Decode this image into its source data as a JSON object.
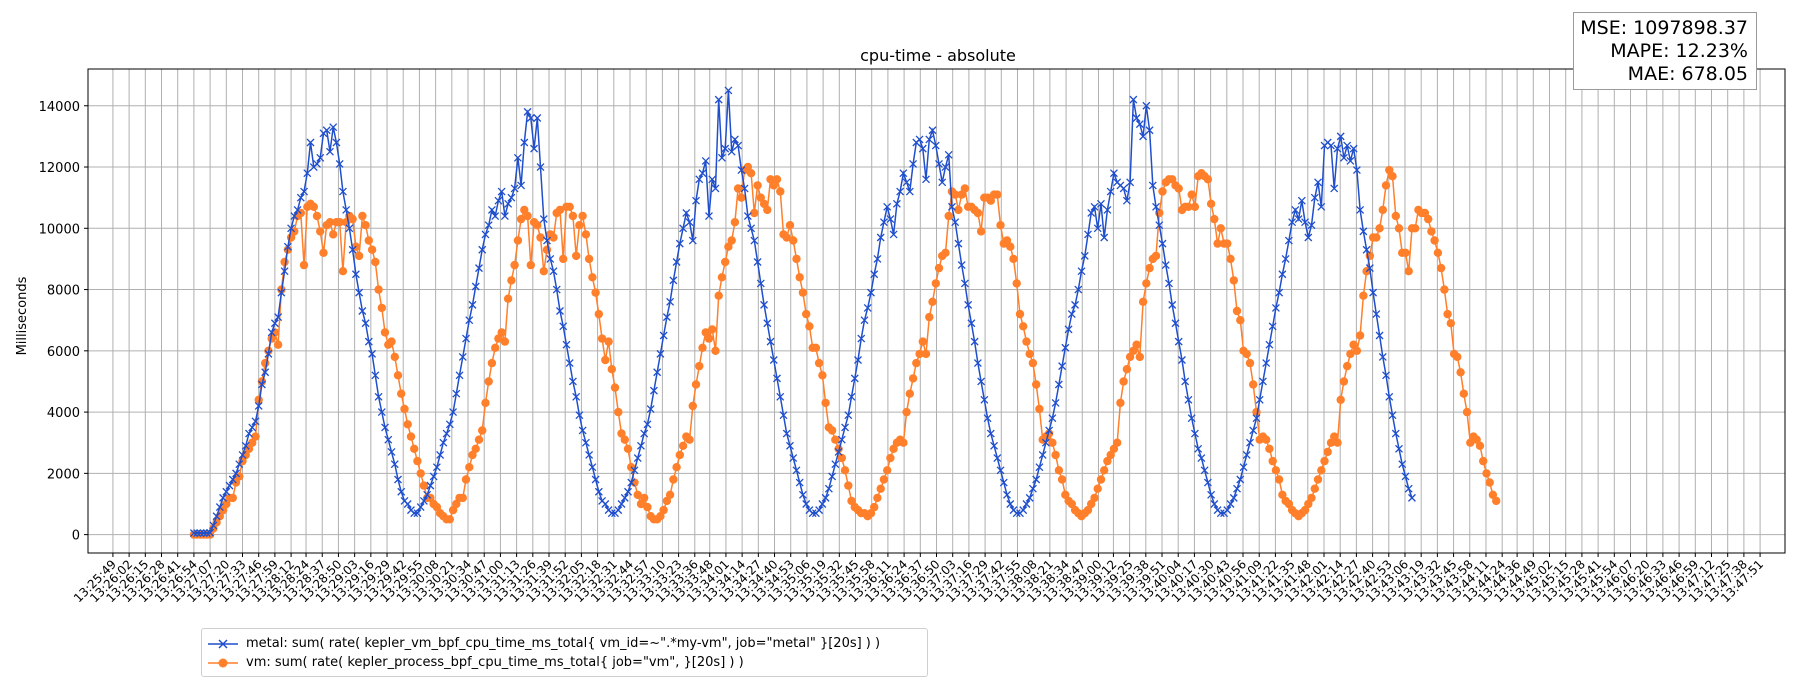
{
  "chart_data": {
    "type": "line",
    "title": "cpu-time - absolute",
    "xlabel": "",
    "ylabel": "Milliseconds",
    "ylim": [
      -600,
      15200
    ],
    "yticks": [
      0,
      2000,
      4000,
      6000,
      8000,
      10000,
      12000,
      14000
    ],
    "grid": true,
    "legend_position": "bottom-left, below plot",
    "x_tick_labels": [
      "13:25:49",
      "13:26:02",
      "13:26:15",
      "13:26:28",
      "13:26:41",
      "13:26:54",
      "13:27:07",
      "13:27:20",
      "13:27:33",
      "13:27:46",
      "13:27:59",
      "13:28:12",
      "13:28:24",
      "13:28:37",
      "13:28:50",
      "13:29:03",
      "13:29:16",
      "13:29:29",
      "13:29:42",
      "13:29:55",
      "13:30:08",
      "13:30:21",
      "13:30:34",
      "13:30:47",
      "13:31:00",
      "13:31:13",
      "13:31:26",
      "13:31:39",
      "13:31:52",
      "13:32:05",
      "13:32:18",
      "13:32:31",
      "13:32:44",
      "13:32:57",
      "13:33:10",
      "13:33:23",
      "13:33:36",
      "13:33:48",
      "13:34:01",
      "13:34:14",
      "13:34:27",
      "13:34:40",
      "13:34:53",
      "13:35:06",
      "13:35:19",
      "13:35:32",
      "13:35:45",
      "13:35:58",
      "13:36:11",
      "13:36:24",
      "13:36:37",
      "13:36:50",
      "13:37:03",
      "13:37:16",
      "13:37:29",
      "13:37:42",
      "13:37:55",
      "13:38:08",
      "13:38:21",
      "13:38:34",
      "13:38:47",
      "13:39:00",
      "13:39:12",
      "13:39:25",
      "13:39:38",
      "13:39:51",
      "13:40:04",
      "13:40:17",
      "13:40:30",
      "13:40:43",
      "13:40:56",
      "13:41:09",
      "13:41:22",
      "13:41:35",
      "13:41:48",
      "13:42:01",
      "13:42:14",
      "13:42:27",
      "13:42:40",
      "13:42:53",
      "13:43:06",
      "13:43:19",
      "13:43:32",
      "13:43:45",
      "13:43:58",
      "13:44:11",
      "13:44:24",
      "13:44:36",
      "13:44:49",
      "13:45:02",
      "13:45:15",
      "13:45:28",
      "13:45:41",
      "13:45:54",
      "13:46:07",
      "13:46:20",
      "13:46:33",
      "13:46:46",
      "13:46:59",
      "13:47:12",
      "13:47:25",
      "13:47:38",
      "13:47:51"
    ],
    "x_start": "13:26:54",
    "x_step_seconds": 2.6,
    "series": [
      {
        "name": "metal: sum( rate( kepler_vm_bpf_cpu_time_ms_total{ vm_id=~\".*my-vm\", job=\"metal\" }[20s] ) )",
        "color": "#1f4fcc",
        "marker": "x",
        "values": [
          50,
          50,
          50,
          50,
          50,
          60,
          300,
          600,
          900,
          1200,
          1400,
          1600,
          1800,
          2000,
          2300,
          2600,
          2900,
          3300,
          3500,
          3700,
          4200,
          4900,
          5300,
          5900,
          6600,
          6900,
          7100,
          7900,
          8600,
          9400,
          10000,
          10400,
          10600,
          11000,
          11200,
          11800,
          12800,
          12000,
          12100,
          12300,
          13100,
          13200,
          12500,
          13300,
          12800,
          12100,
          11200,
          10600,
          10000,
          9300,
          8500,
          7900,
          7300,
          6900,
          6300,
          5900,
          5200,
          4500,
          4000,
          3500,
          3100,
          2700,
          2300,
          1800,
          1400,
          1100,
          1000,
          800,
          700,
          700,
          900,
          1100,
          1300,
          1600,
          1900,
          2200,
          2600,
          3000,
          3300,
          3600,
          4000,
          4600,
          5200,
          5800,
          6400,
          7000,
          7500,
          8100,
          8700,
          9300,
          9800,
          10100,
          10600,
          10400,
          10900,
          11200,
          10400,
          10800,
          11000,
          11300,
          12300,
          11400,
          12800,
          13800,
          13600,
          12600,
          13600,
          12000,
          10300,
          9600,
          9000,
          8600,
          8000,
          7300,
          6800,
          6200,
          5600,
          5000,
          4500,
          3900,
          3400,
          3000,
          2600,
          2200,
          1800,
          1400,
          1100,
          1000,
          800,
          700,
          700,
          800,
          1000,
          1200,
          1400,
          1700,
          2100,
          2500,
          2900,
          3300,
          3600,
          4100,
          4700,
          5300,
          5900,
          6500,
          7100,
          7600,
          8300,
          8900,
          9500,
          10000,
          10500,
          10200,
          9600,
          10900,
          11600,
          11800,
          12200,
          10400,
          11600,
          11300,
          14200,
          12300,
          12600,
          14500,
          12500,
          12900,
          12700,
          11900,
          11300,
          10400,
          10000,
          9600,
          8900,
          8200,
          7500,
          6900,
          6300,
          5700,
          5100,
          4500,
          3900,
          3300,
          2900,
          2500,
          2100,
          1700,
          1300,
          1000,
          800,
          700,
          700,
          800,
          1000,
          1200,
          1500,
          1900,
          2300,
          2700,
          3100,
          3500,
          3900,
          4500,
          5100,
          5700,
          6400,
          7000,
          7400,
          7900,
          8500,
          9000,
          9700,
          10200,
          10700,
          10300,
          9800,
          10800,
          11200,
          11800,
          11500,
          11200,
          12100,
          12800,
          12900,
          12600,
          11600,
          12900,
          13200,
          12700,
          12100,
          11500,
          12000,
          12400,
          10700,
          10200,
          9500,
          8800,
          8200,
          7500,
          6900,
          6300,
          5600,
          5000,
          4400,
          3800,
          3300,
          2900,
          2500,
          2100,
          1700,
          1300,
          1000,
          800,
          700,
          700,
          800,
          1000,
          1200,
          1500,
          1800,
          2200,
          2600,
          3000,
          3400,
          3800,
          4300,
          4900,
          5500,
          6100,
          6700,
          7200,
          7500,
          8000,
          8600,
          9100,
          9800,
          10500,
          10700,
          10000,
          10800,
          9700,
          10600,
          11200,
          11800,
          11500,
          11400,
          11300,
          10900,
          11500,
          14200,
          13600,
          13400,
          13000,
          14000,
          13200,
          11400,
          10700,
          10100,
          9500,
          8800,
          8200,
          7500,
          6900,
          6300,
          5700,
          5000,
          4400,
          3800,
          3300,
          2800,
          2500,
          2100,
          1700,
          1300,
          1000,
          800,
          700,
          700,
          800,
          1000,
          1200,
          1500,
          1800,
          2200,
          2600,
          3000,
          3400,
          3800,
          4400,
          5000,
          5600,
          6200,
          6800,
          7400,
          7900,
          8500,
          9000,
          9600,
          10200,
          10600,
          10300,
          10900,
          10200,
          9700,
          10100,
          11000,
          11500,
          10700,
          12700,
          12800,
          12700,
          11300,
          12600,
          13000,
          12300,
          12700,
          12200,
          12600,
          11900,
          10600,
          9900,
          9300,
          8700,
          7900,
          7200,
          6500,
          5800,
          5200,
          4500,
          3900,
          3300,
          2800,
          2300,
          1900,
          1500,
          1200
        ]
      },
      {
        "name": "vm: sum( rate( kepler_process_bpf_cpu_time_ms_total{ job=\"vm\", }[20s] ) )",
        "color": "#ff7f2a",
        "marker": "o",
        "values": [
          0,
          0,
          0,
          0,
          0,
          0,
          200,
          400,
          600,
          800,
          1000,
          1200,
          1200,
          1700,
          1900,
          2400,
          2600,
          2800,
          3000,
          3200,
          4400,
          5000,
          5600,
          6000,
          6400,
          6600,
          6200,
          8000,
          8900,
          9300,
          9700,
          9900,
          10400,
          10500,
          8800,
          10700,
          10800,
          10700,
          10400,
          9900,
          9200,
          10100,
          10200,
          9800,
          10200,
          10200,
          8600,
          10200,
          10400,
          10300,
          9400,
          9100,
          10400,
          10100,
          9600,
          9300,
          8900,
          8000,
          7400,
          6600,
          6200,
          6300,
          5800,
          5200,
          4600,
          4100,
          3600,
          3200,
          2800,
          2400,
          2000,
          1600,
          1200,
          1200,
          1000,
          900,
          700,
          600,
          500,
          500,
          800,
          1000,
          1200,
          1200,
          1800,
          2200,
          2600,
          2800,
          3100,
          3400,
          4300,
          5000,
          5600,
          6100,
          6400,
          6600,
          6300,
          7700,
          8300,
          8800,
          9600,
          10300,
          10600,
          10400,
          8800,
          10200,
          10100,
          9700,
          8600,
          9300,
          9800,
          9700,
          10500,
          10600,
          9000,
          10700,
          10700,
          10400,
          9100,
          10100,
          10400,
          9800,
          9000,
          8400,
          7900,
          7200,
          6400,
          5700,
          6300,
          5400,
          4800,
          4000,
          3300,
          3100,
          2800,
          2200,
          1700,
          1300,
          1000,
          1200,
          900,
          600,
          500,
          500,
          600,
          800,
          1100,
          1300,
          1800,
          2200,
          2600,
          2900,
          3200,
          3100,
          4200,
          4900,
          5500,
          6100,
          6600,
          6400,
          6700,
          6000,
          7800,
          8400,
          8900,
          9400,
          9600,
          10200,
          11300,
          11000,
          11900,
          12000,
          11800,
          10500,
          11400,
          11000,
          10800,
          10600,
          11600,
          11400,
          11600,
          11200,
          9800,
          9700,
          10100,
          9600,
          9000,
          8400,
          7900,
          7200,
          6800,
          6100,
          6100,
          5600,
          5200,
          4300,
          3500,
          3400,
          3100,
          2800,
          2500,
          2100,
          1600,
          1100,
          900,
          800,
          700,
          700,
          600,
          700,
          900,
          1200,
          1500,
          1800,
          2100,
          2500,
          2800,
          3000,
          3100,
          3000,
          4000,
          4600,
          5100,
          5600,
          5900,
          6300,
          5900,
          7100,
          7600,
          8200,
          8700,
          9100,
          9200,
          10400,
          11200,
          11100,
          10600,
          11100,
          11300,
          10700,
          10700,
          10600,
          10500,
          9900,
          11000,
          11000,
          10900,
          11100,
          11100,
          10100,
          9500,
          9600,
          9400,
          9000,
          8200,
          7200,
          6800,
          6300,
          5900,
          5600,
          4900,
          4100,
          3100,
          3200,
          3300,
          3000,
          2600,
          2100,
          1800,
          1300,
          1100,
          1000,
          800,
          700,
          600,
          700,
          800,
          1000,
          1200,
          1500,
          1800,
          2100,
          2400,
          2600,
          2800,
          3000,
          4300,
          5000,
          5400,
          5800,
          6000,
          6200,
          5800,
          7600,
          8200,
          8700,
          9000,
          9100,
          10500,
          11200,
          11500,
          11600,
          11600,
          11400,
          11300,
          10600,
          10700,
          10700,
          11100,
          10700,
          11700,
          11800,
          11700,
          11600,
          10800,
          10300,
          9500,
          10000,
          9500,
          9500,
          9000,
          8300,
          7300,
          7000,
          6000,
          5900,
          5600,
          4900,
          4000,
          3100,
          3200,
          3100,
          2800,
          2400,
          2100,
          1800,
          1300,
          1100,
          1000,
          800,
          700,
          600,
          700,
          800,
          1000,
          1200,
          1500,
          1800,
          2100,
          2400,
          2700,
          3000,
          3200,
          3000,
          4400,
          5000,
          5500,
          5900,
          6200,
          6000,
          6500,
          7800,
          8600,
          9100,
          9700,
          9700,
          10000,
          10600,
          11400,
          11900,
          11700,
          10400,
          10000,
          9200,
          9200,
          8600,
          10000,
          10000,
          10600,
          10500,
          10500,
          10300,
          9900,
          9600,
          9200,
          8700,
          8000,
          7200,
          6900,
          5900,
          5800,
          5300,
          4600,
          4000,
          3000,
          3200,
          3100,
          2900,
          2400,
          2000,
          1700,
          1300,
          1100
        ]
      }
    ]
  },
  "stats": {
    "mse": "MSE: 1097898.37",
    "mape": "MAPE: 12.23%",
    "mae": "MAE: 678.05"
  }
}
